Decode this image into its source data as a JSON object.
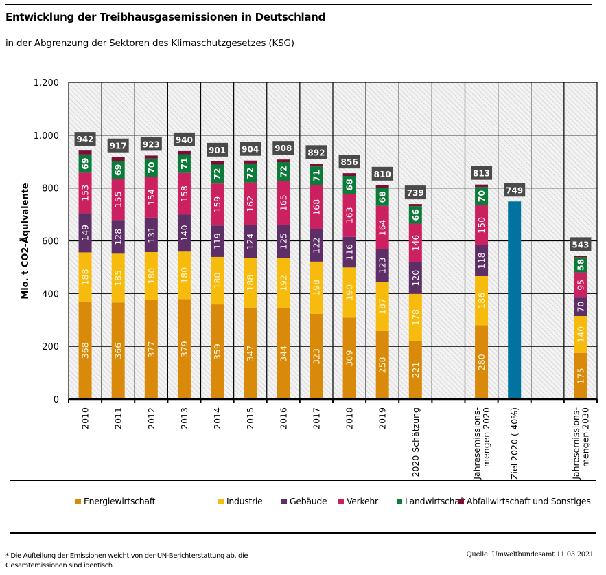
{
  "header": {
    "title": "Entwicklung der Treibhausgasemissionen in Deutschland",
    "subtitle": "in der Abgrenzung der Sektoren des Klimaschutzgesetzes (KSG)"
  },
  "footer": {
    "footnote": "* Die Aufteilung der Emissionen weicht von der UN-Berichterstattung ab, die Gesamtemissionen sind identisch",
    "source": "Quelle: Umweltbundesamt  11.03.2021"
  },
  "colors": {
    "Energiewirtschaft": "#D98A0B",
    "Industrie": "#F7BB0D",
    "Gebäude": "#5E2E66",
    "Verkehr": "#CC2160",
    "Landwirtschaft": "#0C7A38",
    "Abfallwirtschaft und Sonstiges": "#7A0E36",
    "Ziel": "#0073A0",
    "total_label_bg": "#4A4A4A",
    "hatch_bg": "#F2F2F2",
    "hatch_line": "#D0D0D0"
  },
  "chart_data": {
    "type": "bar",
    "stacked": true,
    "title": "Entwicklung der Treibhausgasemissionen in Deutschland",
    "subtitle": "in der Abgrenzung der Sektoren des Klimaschutzgesetzes (KSG)",
    "xlabel": "",
    "ylabel": "Mio. t CO2-Äquivalente",
    "ylim": [
      0,
      1200
    ],
    "yticks": [
      0,
      200,
      400,
      600,
      800,
      1000,
      1200
    ],
    "ytick_labels": [
      "0",
      "200",
      "400",
      "600",
      "800",
      "1.000",
      "1.200"
    ],
    "grid": true,
    "legend_position": "bottom",
    "categories": [
      "2010",
      "2011",
      "2012",
      "2013",
      "2014",
      "2015",
      "2016",
      "2017",
      "2018",
      "2019",
      "2020 Schätzung",
      "",
      "Jahresemissions-\nmengen 2020",
      "Ziel 2020 (-40%)",
      "",
      "Jahresemissions-\nmengen 2030"
    ],
    "series": [
      {
        "name": "Energiewirtschaft",
        "values": [
          368,
          366,
          377,
          379,
          359,
          347,
          344,
          323,
          309,
          258,
          221,
          null,
          280,
          null,
          null,
          175
        ]
      },
      {
        "name": "Industrie",
        "values": [
          188,
          185,
          180,
          180,
          180,
          188,
          192,
          198,
          190,
          187,
          178,
          null,
          186,
          null,
          null,
          140
        ]
      },
      {
        "name": "Gebäude",
        "values": [
          149,
          128,
          131,
          140,
          119,
          124,
          125,
          122,
          116,
          123,
          120,
          null,
          118,
          null,
          null,
          70
        ]
      },
      {
        "name": "Verkehr",
        "values": [
          153,
          155,
          154,
          158,
          159,
          162,
          165,
          168,
          163,
          164,
          146,
          null,
          150,
          null,
          null,
          95
        ]
      },
      {
        "name": "Landwirtschaft",
        "values": [
          69,
          69,
          70,
          71,
          72,
          72,
          72,
          71,
          68,
          68,
          66,
          null,
          70,
          null,
          null,
          58
        ]
      },
      {
        "name": "Abfallwirtschaft und Sonstiges",
        "values": [
          15,
          14,
          11,
          12,
          12,
          11,
          10,
          10,
          10,
          10,
          8,
          null,
          9,
          null,
          null,
          5
        ]
      },
      {
        "name": "Ziel 2020 (-40%)",
        "values": [
          null,
          null,
          null,
          null,
          null,
          null,
          null,
          null,
          null,
          null,
          null,
          null,
          null,
          749,
          null,
          null
        ]
      }
    ],
    "totals": [
      942,
      917,
      923,
      940,
      901,
      904,
      908,
      892,
      856,
      810,
      739,
      null,
      813,
      749,
      null,
      543
    ],
    "legend": [
      "Energiewirtschaft",
      "Industrie",
      "Gebäude",
      "Verkehr",
      "Landwirtschaft",
      "Abfallwirtschaft und Sonstiges"
    ]
  }
}
